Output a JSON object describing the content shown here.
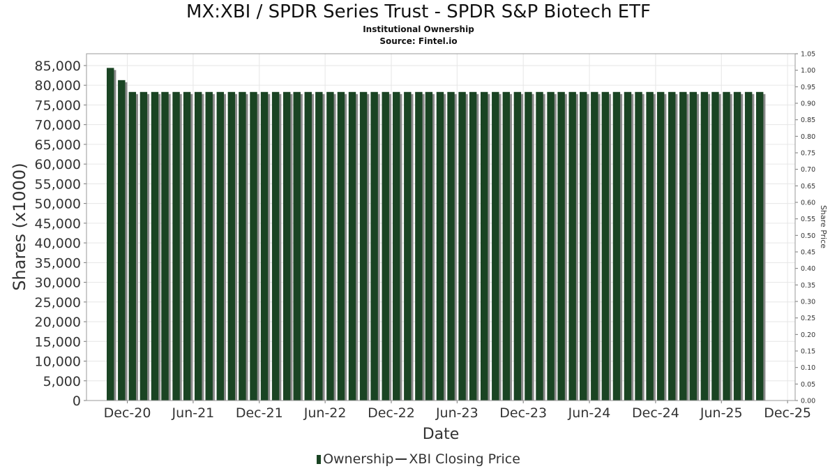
{
  "chart_data": {
    "type": "bar",
    "title": "MX:XBI / SPDR Series Trust - SPDR S&P Biotech ETF",
    "subtitle": "Institutional Ownership",
    "source": "Source: Fintel.io",
    "xlabel": "Date",
    "ylabel": "Shares (x1000)",
    "y2label": "Share Price",
    "ylim": [
      0,
      88000
    ],
    "y2lim": [
      0,
      1.05
    ],
    "xlim": [
      "2020-08-10",
      "2025-12-22"
    ],
    "grid": true,
    "legend_position": "bottom",
    "y_ticks": [
      "0",
      "5,000",
      "10,000",
      "15,000",
      "20,000",
      "25,000",
      "30,000",
      "35,000",
      "40,000",
      "45,000",
      "50,000",
      "55,000",
      "60,000",
      "65,000",
      "70,000",
      "75,000",
      "80,000",
      "85,000"
    ],
    "y2_ticks": [
      "0.00",
      "0.05",
      "0.10",
      "0.15",
      "0.20",
      "0.25",
      "0.30",
      "0.35",
      "0.40",
      "0.45",
      "0.50",
      "0.55",
      "0.60",
      "0.65",
      "0.70",
      "0.75",
      "0.80",
      "0.85",
      "0.90",
      "0.95",
      "1.00",
      "1.05"
    ],
    "x_ticks": [
      {
        "label": "Dec-20",
        "date": "2020-12-01"
      },
      {
        "label": "Jun-21",
        "date": "2021-06-01"
      },
      {
        "label": "Dec-21",
        "date": "2021-12-01"
      },
      {
        "label": "Jun-22",
        "date": "2022-06-01"
      },
      {
        "label": "Dec-22",
        "date": "2022-12-01"
      },
      {
        "label": "Jun-23",
        "date": "2023-06-01"
      },
      {
        "label": "Dec-23",
        "date": "2023-12-01"
      },
      {
        "label": "Jun-24",
        "date": "2024-06-01"
      },
      {
        "label": "Dec-24",
        "date": "2024-12-01"
      },
      {
        "label": "Jun-25",
        "date": "2025-06-01"
      },
      {
        "label": "Dec-25",
        "date": "2025-12-01"
      }
    ],
    "series": [
      {
        "name": "Ownership",
        "color": "#1a4423",
        "points": [
          {
            "date": "2020-10-15",
            "value": 84400
          },
          {
            "date": "2020-11-15",
            "value": 81300
          },
          {
            "date": "2020-12-15",
            "value": 78300
          },
          {
            "date": "2021-01-15",
            "value": 78300
          },
          {
            "date": "2021-02-15",
            "value": 78300
          },
          {
            "date": "2021-03-15",
            "value": 78300
          },
          {
            "date": "2021-04-15",
            "value": 78300
          },
          {
            "date": "2021-05-15",
            "value": 78300
          },
          {
            "date": "2021-06-15",
            "value": 78300
          },
          {
            "date": "2021-07-15",
            "value": 78300
          },
          {
            "date": "2021-08-15",
            "value": 78300
          },
          {
            "date": "2021-09-15",
            "value": 78300
          },
          {
            "date": "2021-10-15",
            "value": 78300
          },
          {
            "date": "2021-11-15",
            "value": 78300
          },
          {
            "date": "2021-12-15",
            "value": 78300
          },
          {
            "date": "2022-01-15",
            "value": 78300
          },
          {
            "date": "2022-02-15",
            "value": 78300
          },
          {
            "date": "2022-03-15",
            "value": 78300
          },
          {
            "date": "2022-04-15",
            "value": 78300
          },
          {
            "date": "2022-05-15",
            "value": 78300
          },
          {
            "date": "2022-06-15",
            "value": 78300
          },
          {
            "date": "2022-07-15",
            "value": 78300
          },
          {
            "date": "2022-08-15",
            "value": 78300
          },
          {
            "date": "2022-09-15",
            "value": 78300
          },
          {
            "date": "2022-10-15",
            "value": 78300
          },
          {
            "date": "2022-11-15",
            "value": 78300
          },
          {
            "date": "2022-12-15",
            "value": 78300
          },
          {
            "date": "2023-01-15",
            "value": 78300
          },
          {
            "date": "2023-02-15",
            "value": 78300
          },
          {
            "date": "2023-03-15",
            "value": 78300
          },
          {
            "date": "2023-04-15",
            "value": 78300
          },
          {
            "date": "2023-05-15",
            "value": 78300
          },
          {
            "date": "2023-06-15",
            "value": 78300
          },
          {
            "date": "2023-07-15",
            "value": 78300
          },
          {
            "date": "2023-08-15",
            "value": 78300
          },
          {
            "date": "2023-09-15",
            "value": 78300
          },
          {
            "date": "2023-10-15",
            "value": 78300
          },
          {
            "date": "2023-11-15",
            "value": 78300
          },
          {
            "date": "2023-12-15",
            "value": 78300
          },
          {
            "date": "2024-01-15",
            "value": 78300
          },
          {
            "date": "2024-02-15",
            "value": 78300
          },
          {
            "date": "2024-03-15",
            "value": 78300
          },
          {
            "date": "2024-04-15",
            "value": 78300
          },
          {
            "date": "2024-05-15",
            "value": 78300
          },
          {
            "date": "2024-06-15",
            "value": 78300
          },
          {
            "date": "2024-07-15",
            "value": 78300
          },
          {
            "date": "2024-08-15",
            "value": 78300
          },
          {
            "date": "2024-09-15",
            "value": 78300
          },
          {
            "date": "2024-10-15",
            "value": 78300
          },
          {
            "date": "2024-11-15",
            "value": 78300
          },
          {
            "date": "2024-12-15",
            "value": 78300
          },
          {
            "date": "2025-01-15",
            "value": 78300
          },
          {
            "date": "2025-02-15",
            "value": 78300
          },
          {
            "date": "2025-03-15",
            "value": 78300
          },
          {
            "date": "2025-04-15",
            "value": 78300
          },
          {
            "date": "2025-05-15",
            "value": 78300
          },
          {
            "date": "2025-06-15",
            "value": 78300
          },
          {
            "date": "2025-07-15",
            "value": 78300
          },
          {
            "date": "2025-08-15",
            "value": 78300
          },
          {
            "date": "2025-09-15",
            "value": 78300
          }
        ]
      },
      {
        "name": "XBI Closing Price",
        "color": "#333333",
        "points": []
      }
    ]
  }
}
